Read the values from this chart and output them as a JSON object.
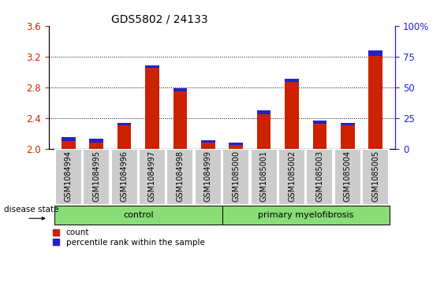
{
  "title": "GDS5802 / 24133",
  "samples": [
    "GSM1084994",
    "GSM1084995",
    "GSM1084996",
    "GSM1084997",
    "GSM1084998",
    "GSM1084999",
    "GSM1085000",
    "GSM1085001",
    "GSM1085002",
    "GSM1085003",
    "GSM1085004",
    "GSM1085005"
  ],
  "red_values": [
    2.1,
    2.08,
    2.3,
    3.05,
    2.75,
    2.08,
    2.05,
    2.45,
    2.87,
    2.33,
    2.3,
    3.21
  ],
  "blue_values": [
    0.055,
    0.05,
    0.04,
    0.035,
    0.04,
    0.03,
    0.025,
    0.05,
    0.04,
    0.035,
    0.04,
    0.07
  ],
  "ylim_left": [
    2.0,
    3.6
  ],
  "yticks_left": [
    2.0,
    2.4,
    2.8,
    3.2,
    3.6
  ],
  "ylim_right": [
    0,
    100
  ],
  "yticks_right": [
    0,
    25,
    50,
    75,
    100
  ],
  "ytick_labels_right": [
    "0",
    "25",
    "50",
    "75",
    "100%"
  ],
  "bar_width": 0.5,
  "control_count": 6,
  "group_labels": [
    "control",
    "primary myelofibrosis"
  ],
  "disease_label": "disease state",
  "legend_red": "count",
  "legend_blue": "percentile rank within the sample",
  "red_color": "#cc2200",
  "blue_color": "#2222cc",
  "group_bg_color": "#88dd77",
  "tick_area_bg": "#cccccc",
  "title_fontsize": 10,
  "tick_fontsize": 7,
  "label_fontsize": 8,
  "baseline": 2.0
}
